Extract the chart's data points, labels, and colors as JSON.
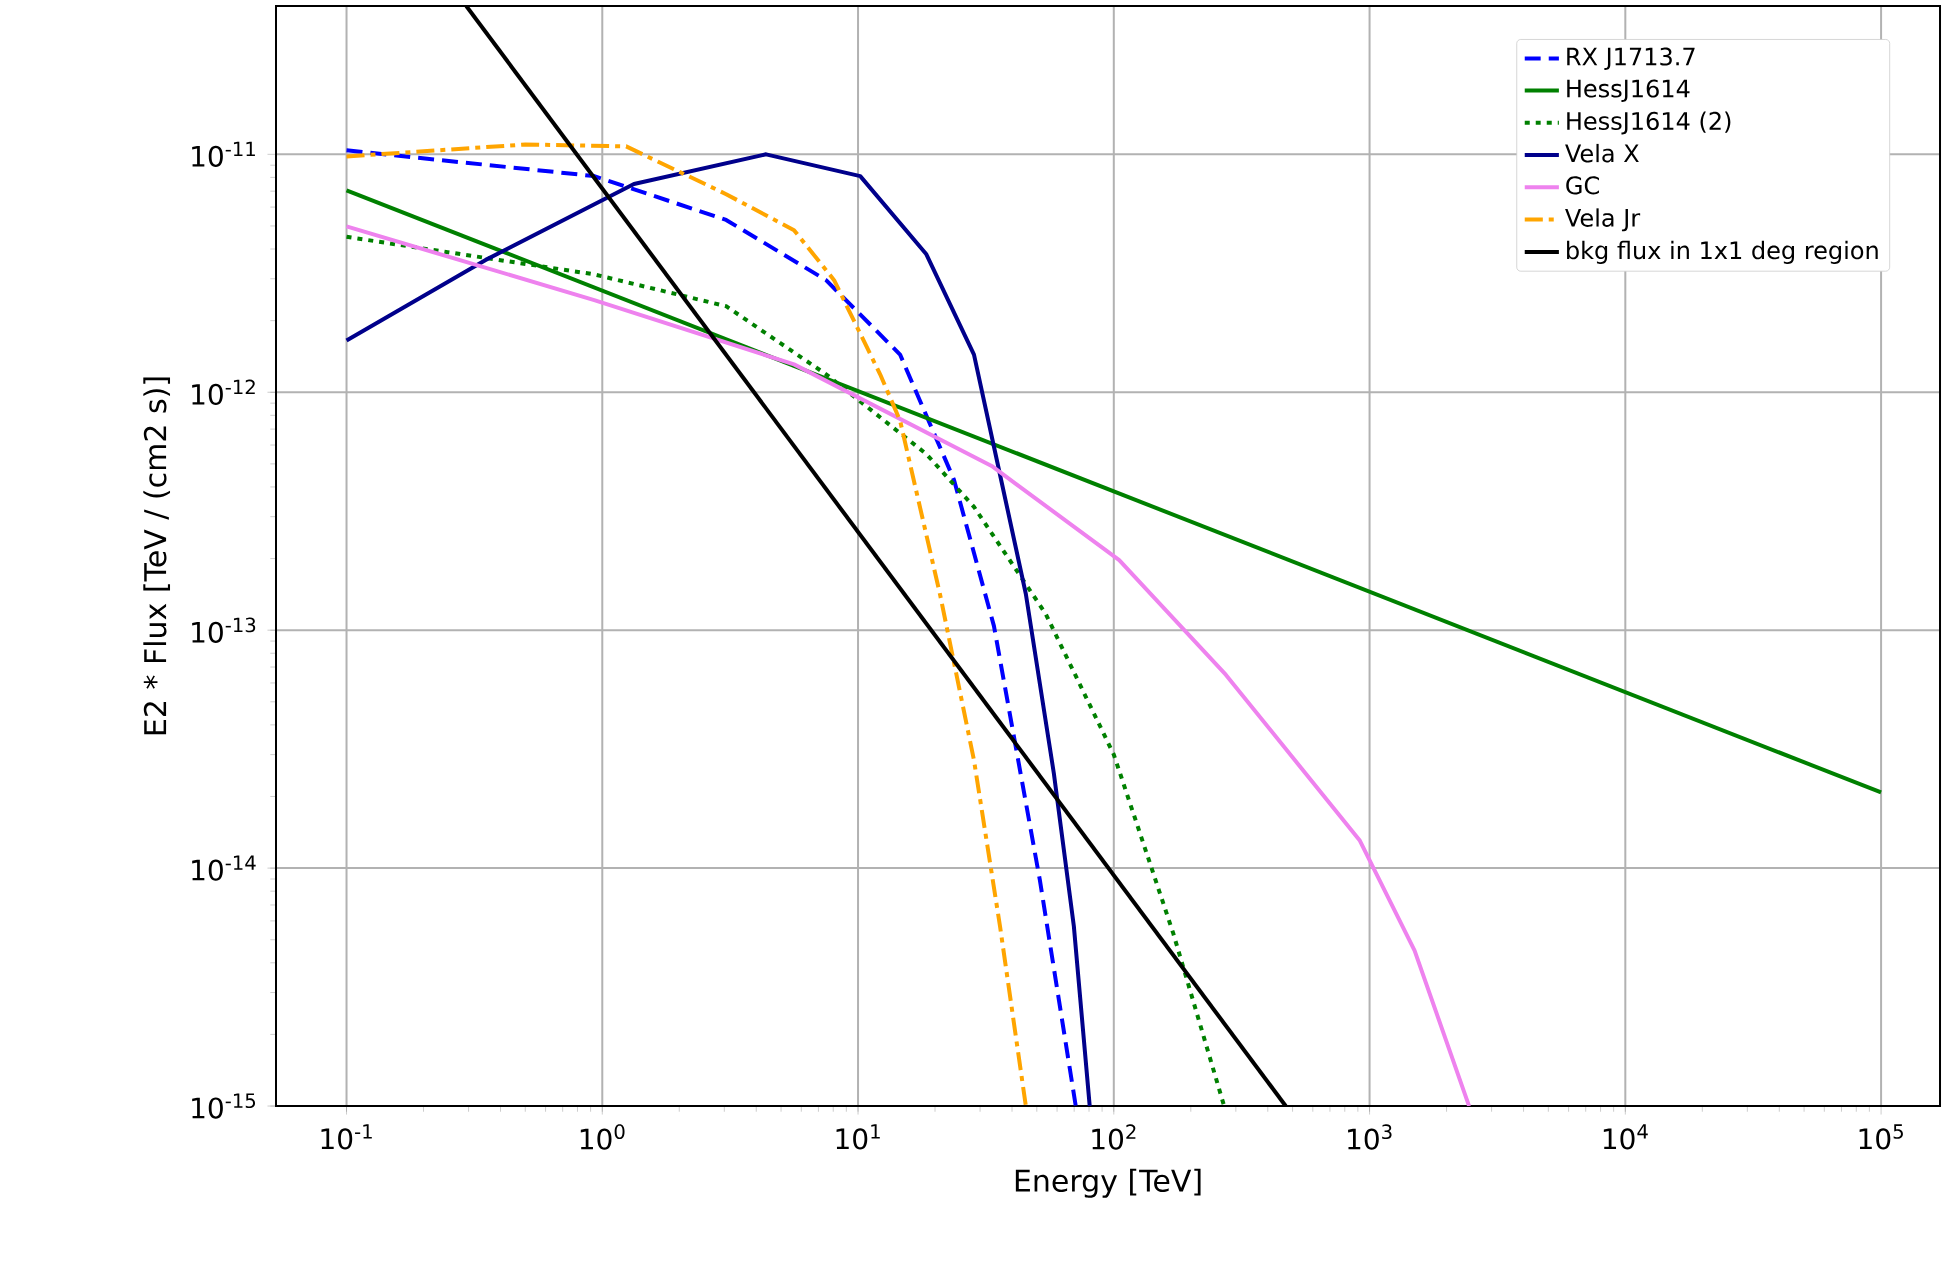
{
  "chart_data": {
    "type": "line",
    "xlabel": "Energy [TeV]",
    "ylabel": "E2 * Flux [TeV / (cm2 s)]",
    "log": "xy",
    "grid": true,
    "legend": "top right",
    "xlim": [
      0.053,
      170000
    ],
    "ylim": [
      1e-15,
      4.2e-11
    ],
    "xticks": [
      {
        "value": 0.1,
        "label": "10$^{-1}$"
      },
      {
        "value": 1,
        "label": "10$^{0}$"
      },
      {
        "value": 10,
        "label": "10$^{1}$"
      },
      {
        "value": 100,
        "label": "10$^{2}$"
      },
      {
        "value": 1000,
        "label": "10$^{3}$"
      },
      {
        "value": 10000,
        "label": "10$^{4}$"
      },
      {
        "value": 100000,
        "label": "10$^{5}$"
      }
    ],
    "yticks": [
      {
        "value": 1e-15,
        "label": "10$^{-15}$"
      },
      {
        "value": 1e-14,
        "label": "10$^{-14}$"
      },
      {
        "value": 1e-13,
        "label": "10$^{-13}$"
      },
      {
        "value": 1e-12,
        "label": "10$^{-12}$"
      },
      {
        "value": 1e-11,
        "label": "10$^{-11}$"
      }
    ],
    "series": [
      {
        "name": "RX J1713.7",
        "color": "#0000ff",
        "line_style": "dashed",
        "x": [
          0.1,
          0.93,
          3.05,
          7.5,
          14.6,
          23.7,
          34.0,
          51.4,
          71
        ],
        "values": [
          1.04e-11,
          8.1e-12,
          5.3e-12,
          2.96e-12,
          1.44e-12,
          4.3e-13,
          1.04e-13,
          8.9e-15,
          1e-15
        ]
      },
      {
        "name": "HessJ1614",
        "color": "#008000",
        "line_style": "solid",
        "x": [
          0.1,
          100000
        ],
        "values": [
          7.06e-12,
          2.08e-14
        ]
      },
      {
        "name": "HessJ1614 (2)",
        "color": "#008000",
        "line_style": "dotted",
        "x": [
          0.1,
          0.93,
          3.05,
          7.5,
          18.5,
          28.4,
          54.2,
          100,
          171,
          270
        ],
        "values": [
          4.5e-12,
          3.13e-12,
          2.3e-12,
          1.19e-12,
          5.5e-13,
          3.3e-13,
          1.17e-13,
          3e-14,
          5.3e-15,
          1e-15
        ]
      },
      {
        "name": "Vela X",
        "color": "#00008b",
        "line_style": "solid",
        "x": [
          0.1,
          0.35,
          1.33,
          4.37,
          10.2,
          18.5,
          28.4,
          34.0,
          45.3,
          58.3,
          69.8,
          80.5
        ],
        "values": [
          1.65e-12,
          3.6e-12,
          7.5e-12,
          1e-11,
          8.1e-12,
          3.8e-12,
          1.44e-12,
          5.9e-13,
          1.42e-13,
          2.5e-14,
          5.7e-15,
          1e-15
        ]
      },
      {
        "name": "GC",
        "color": "#ee82ee",
        "line_style": "solid",
        "x": [
          0.1,
          0.93,
          5.62,
          33.3,
          105,
          274,
          914,
          1500,
          2450
        ],
        "values": [
          4.98e-12,
          2.44e-12,
          1.31e-12,
          4.9e-13,
          1.97e-13,
          6.5e-14,
          1.31e-14,
          4.5e-15,
          1e-15
        ]
      },
      {
        "name": "Vela Jr",
        "color": "#ffa500",
        "line_style": "dashdot",
        "x": [
          0.1,
          0.5,
          1.24,
          3.05,
          5.62,
          8.06,
          12.2,
          14.6,
          20.9,
          28.4,
          35.9,
          45.3
        ],
        "values": [
          9.8e-12,
          1.1e-11,
          1.08e-11,
          6.8e-12,
          4.8e-12,
          2.96e-12,
          1.19e-12,
          7.6e-13,
          1.42e-13,
          2.84e-14,
          5.7e-15,
          1e-15
        ]
      },
      {
        "name": "bkg flux in 1x1 deg region",
        "color": "#000000",
        "line_style": "solid",
        "x": [
          0.294,
          470
        ],
        "values": [
          4.2e-11,
          1e-15
        ]
      }
    ]
  }
}
